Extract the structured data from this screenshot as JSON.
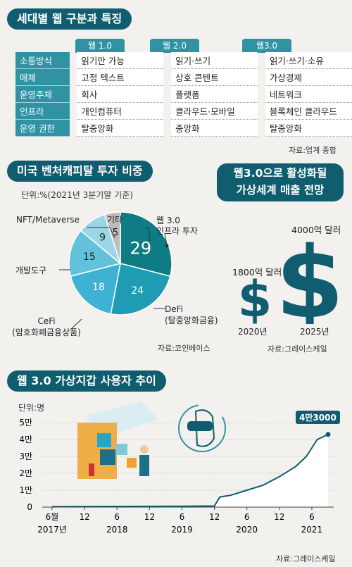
{
  "section1": {
    "title": "세대별 웹 구분과 특징",
    "columns": [
      "웹 1.0",
      "웹 2.0",
      "웹3.0"
    ],
    "rows": [
      {
        "label": "소통방식",
        "values": [
          "읽기만 가능",
          "읽기·쓰기",
          "읽기·쓰기·소유"
        ]
      },
      {
        "label": "매체",
        "values": [
          "고정 텍스트",
          "상호 콘텐트",
          "가상경제"
        ]
      },
      {
        "label": "운영주체",
        "values": [
          "회사",
          "플랫폼",
          "네트워크"
        ]
      },
      {
        "label": "인프라",
        "values": [
          "개인컴퓨터",
          "클라우드·모바일",
          "블록체인 클라우드"
        ]
      },
      {
        "label": "운영 권한",
        "values": [
          "탈중앙화",
          "중앙화",
          "탈중앙화"
        ]
      }
    ],
    "source": "자료:업계 종합"
  },
  "section2": {
    "title": "미국 벤처캐피탈 투자 비중",
    "unit": "단위:%(2021년 3분기말 기준)",
    "source": "자료:코인베이스",
    "slice_labels": {
      "infra": [
        "웹 3.0",
        "인프라 투자"
      ],
      "defi": [
        "DeFi",
        "(탈중앙화금융)"
      ],
      "cefi": [
        "CeFi",
        "(암호화폐금융상품)"
      ],
      "devtools": "개발도구",
      "nft": "NFT/Metaverse",
      "other": "기타"
    }
  },
  "section3": {
    "title_line1": "웹3.0으로 활성화될",
    "title_line2": "가상세계 매출 전망",
    "items": [
      {
        "year": "2020년",
        "label": "1800억 달러"
      },
      {
        "year": "2025년",
        "label": "4000억 달러"
      }
    ],
    "symbol": "$",
    "source": "자료:그레이스케일"
  },
  "section4": {
    "title": "웹 3.0 가상지갑 사용자 추이",
    "unit": "단위:명",
    "end_label": "4만3000",
    "source": "자료:그레이스케일"
  },
  "colors": {
    "teal_dark": "#0f5d6f",
    "teal": "#2f93a3",
    "pie": [
      "#0f7b84",
      "#1f9cb4",
      "#3fb2d4",
      "#62c2dc",
      "#9ad6e6",
      "#bdbdbd"
    ]
  },
  "chart_data": [
    {
      "type": "pie",
      "title": "미국 벤처캐피탈 투자 비중",
      "unit": "%",
      "slices": [
        {
          "name": "웹 3.0 인프라 투자",
          "value": 29
        },
        {
          "name": "DeFi (탈중앙화금융)",
          "value": 24
        },
        {
          "name": "CeFi (암호화폐금융상품)",
          "value": 18
        },
        {
          "name": "개발도구",
          "value": 15
        },
        {
          "name": "NFT/Metaverse",
          "value": 9
        },
        {
          "name": "기타",
          "value": 5
        }
      ]
    },
    {
      "type": "bar",
      "title": "웹3.0으로 활성화될 가상세계 매출 전망",
      "categories": [
        "2020년",
        "2025년"
      ],
      "values": [
        1800,
        4000
      ],
      "unit": "억 달러"
    },
    {
      "type": "area",
      "title": "웹 3.0 가상지갑 사용자 추이",
      "ylabel": "단위:명",
      "ylim": [
        0,
        50000
      ],
      "y_ticks": [
        0,
        10000,
        20000,
        30000,
        40000,
        50000
      ],
      "y_tick_labels": [
        "0",
        "1만",
        "2만",
        "3만",
        "4만",
        "5만"
      ],
      "x_ticks": [
        {
          "month": "2017-06",
          "label": "6월",
          "year_label": "2017년"
        },
        {
          "month": "2017-12",
          "label": "12",
          "year_label": ""
        },
        {
          "month": "2018-06",
          "label": "6",
          "year_label": "2018"
        },
        {
          "month": "2018-12",
          "label": "12",
          "year_label": ""
        },
        {
          "month": "2019-06",
          "label": "6",
          "year_label": "2019"
        },
        {
          "month": "2019-12",
          "label": "12",
          "year_label": ""
        },
        {
          "month": "2020-06",
          "label": "6",
          "year_label": "2020"
        },
        {
          "month": "2020-12",
          "label": "12",
          "year_label": ""
        },
        {
          "month": "2021-06",
          "label": "6",
          "year_label": "2021"
        }
      ],
      "series": [
        {
          "points": [
            [
              "2017-06",
              300
            ],
            [
              "2018-06",
              400
            ],
            [
              "2019-06",
              500
            ],
            [
              "2019-12",
              700
            ],
            [
              "2020-01",
              6000
            ],
            [
              "2020-03",
              7000
            ],
            [
              "2020-06",
              10000
            ],
            [
              "2020-09",
              13000
            ],
            [
              "2020-12",
              18000
            ],
            [
              "2021-03",
              24000
            ],
            [
              "2021-05",
              30000
            ],
            [
              "2021-07",
              40000
            ],
            [
              "2021-09",
              43000
            ]
          ]
        }
      ]
    }
  ]
}
